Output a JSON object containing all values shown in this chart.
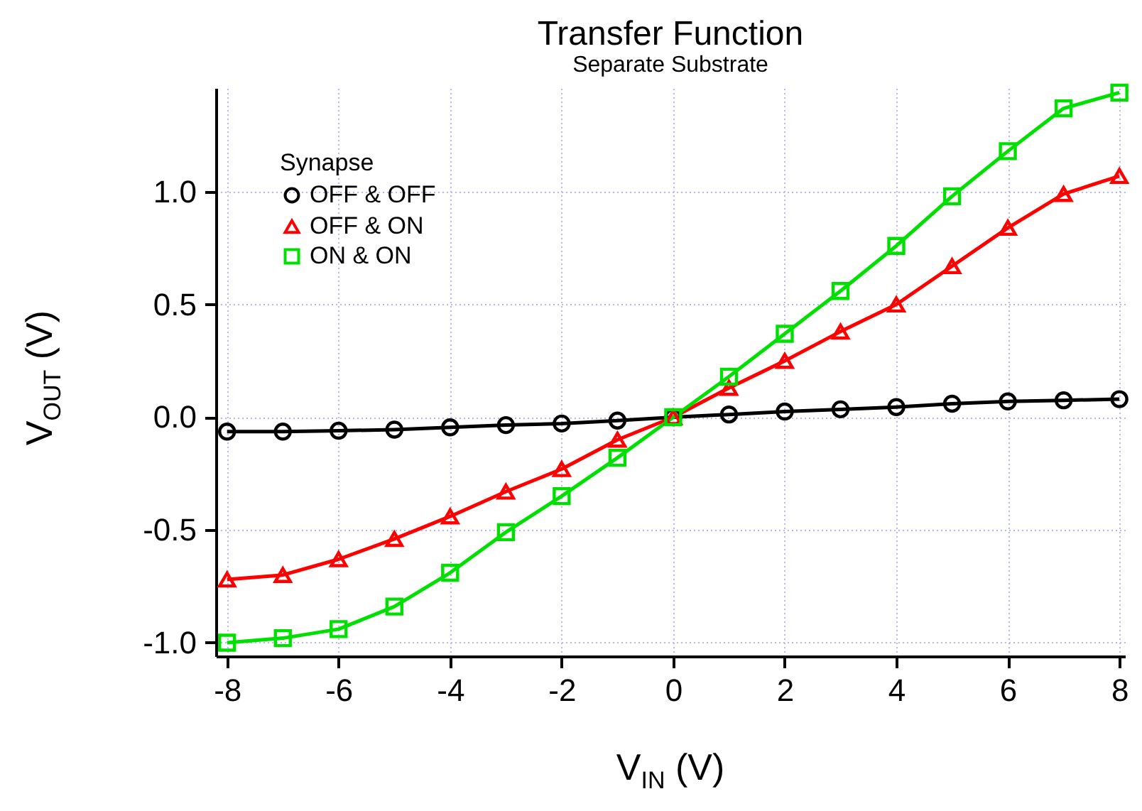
{
  "chart_data": {
    "type": "line",
    "title": "Transfer Function",
    "subtitle": "Separate Substrate",
    "xlabel": "V$_{IN}$ (V)",
    "ylabel": "V$_{OUT}$ (V)",
    "legend_title": "Synapse",
    "x": [
      -8,
      -7,
      -6,
      -5,
      -4,
      -3,
      -2,
      -1,
      0,
      1,
      2,
      3,
      4,
      5,
      6,
      7,
      8
    ],
    "series": [
      {
        "name": "OFF & OFF",
        "color": "#000000",
        "marker": "circle",
        "values": [
          -0.064,
          -0.064,
          -0.06,
          -0.055,
          -0.045,
          -0.035,
          -0.028,
          -0.015,
          0,
          0.012,
          0.025,
          0.035,
          0.045,
          0.06,
          0.07,
          0.075,
          0.08
        ]
      },
      {
        "name": "OFF & ON",
        "color": "#ff0000",
        "marker": "triangle",
        "values": [
          -0.72,
          -0.7,
          -0.63,
          -0.54,
          -0.44,
          -0.33,
          -0.23,
          -0.1,
          0,
          0.13,
          0.25,
          0.38,
          0.5,
          0.67,
          0.84,
          0.99,
          1.07
        ]
      },
      {
        "name": "ON & ON",
        "color": "#00e000",
        "marker": "square",
        "values": [
          -1.0,
          -0.98,
          -0.94,
          -0.84,
          -0.69,
          -0.51,
          -0.35,
          -0.18,
          0,
          0.18,
          0.37,
          0.56,
          0.76,
          0.98,
          1.18,
          1.37,
          1.44
        ]
      }
    ],
    "xlim": [
      -8.2,
      8.1
    ],
    "ylim": [
      -1.06,
      1.46
    ],
    "xticks": [
      -8,
      -6,
      -4,
      -2,
      0,
      2,
      4,
      6,
      8
    ],
    "yticks": [
      {
        "value": -1,
        "label": "-1.0"
      },
      {
        "value": -0.5,
        "label": "-0.5"
      },
      {
        "value": 0,
        "label": "0.0"
      },
      {
        "value": 0.5,
        "label": "0.5"
      },
      {
        "value": 1,
        "label": "1.0"
      }
    ],
    "grid": true,
    "legend": "top left",
    "line_style": "solid"
  }
}
